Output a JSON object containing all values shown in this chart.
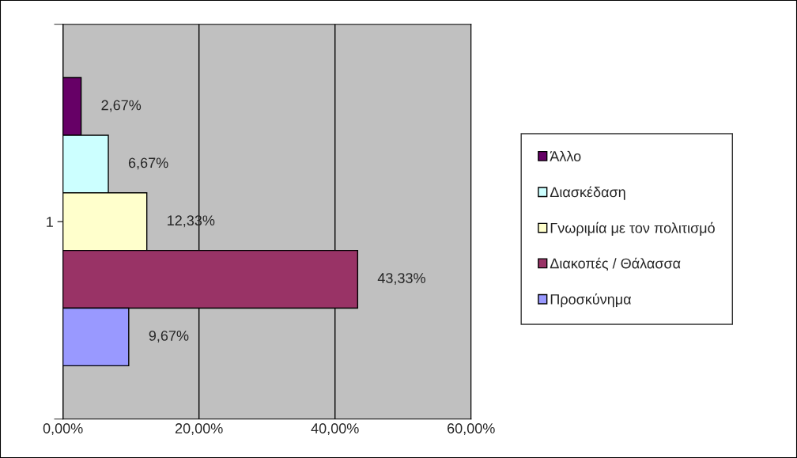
{
  "chart_data": {
    "type": "bar",
    "orientation": "horizontal",
    "categories": [
      "1"
    ],
    "series": [
      {
        "name": "Άλλο",
        "color": "#660066",
        "values": [
          2.67
        ],
        "value_labels": [
          "2,67%"
        ]
      },
      {
        "name": "Διασκέδαση",
        "color": "#ccffff",
        "values": [
          6.67
        ],
        "value_labels": [
          "6,67%"
        ]
      },
      {
        "name": "Γνωριμία με τον πολιτισμό",
        "color": "#ffffcc",
        "values": [
          12.33
        ],
        "value_labels": [
          "12,33%"
        ]
      },
      {
        "name": "Διακοπές / Θάλασσα",
        "color": "#993366",
        "values": [
          43.33
        ],
        "value_labels": [
          "43,33%"
        ]
      },
      {
        "name": "Προσκύνημα",
        "color": "#9999ff",
        "values": [
          9.67
        ],
        "value_labels": [
          "9,67%"
        ]
      }
    ],
    "xlim": [
      0,
      60
    ],
    "xticks": [
      {
        "value": 0,
        "label": "0,00%"
      },
      {
        "value": 20,
        "label": "20,00%"
      },
      {
        "value": 40,
        "label": "40,00%"
      },
      {
        "value": 60,
        "label": "60,00%"
      }
    ],
    "grid": "x",
    "legend": "right"
  }
}
